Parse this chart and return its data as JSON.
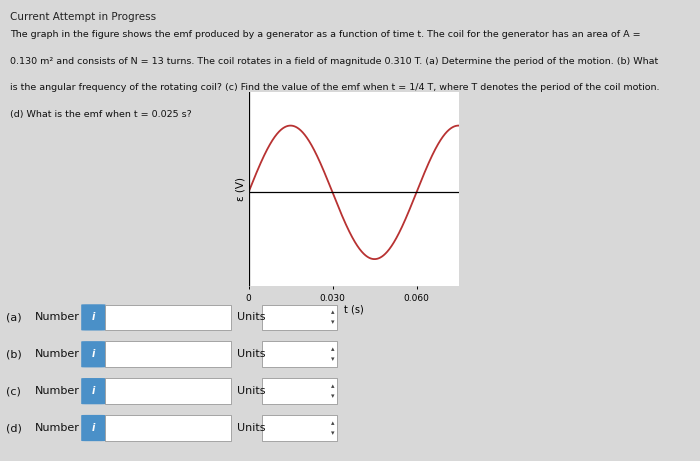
{
  "title": "Current Attempt in Progress",
  "desc_line1": "The graph in the figure shows the emf produced by a generator as a function of time t. The coil for the generator has an area of A =",
  "desc_line2": "0.130 m² and consists of N = 13 turns. The coil rotates in a field of magnitude 0.310 T. (a) Determine the period of the motion. (b) What",
  "desc_line3": "is the angular frequency of the rotating coil? (c) Find the value of the emf when t = 1/4 T, where T denotes the period of the coil motion.",
  "desc_line4": "(d) What is the emf when t = 0.025 s?",
  "period": 0.06,
  "amplitude": 1.0,
  "x_max": 0.075,
  "x_ticks": [
    0,
    0.03,
    0.06
  ],
  "x_tick_labels": [
    "0",
    "0.030",
    "0.060"
  ],
  "xlabel": "t (s)",
  "ylabel": "ε (V)",
  "line_color": "#b83232",
  "background_color": "#d8d8d8",
  "plot_bg_color": "#ffffff",
  "axis_color": "#000000",
  "questions": [
    "(a)",
    "(b)",
    "(c)",
    "(d)"
  ],
  "icon_color": "#4a90c8"
}
